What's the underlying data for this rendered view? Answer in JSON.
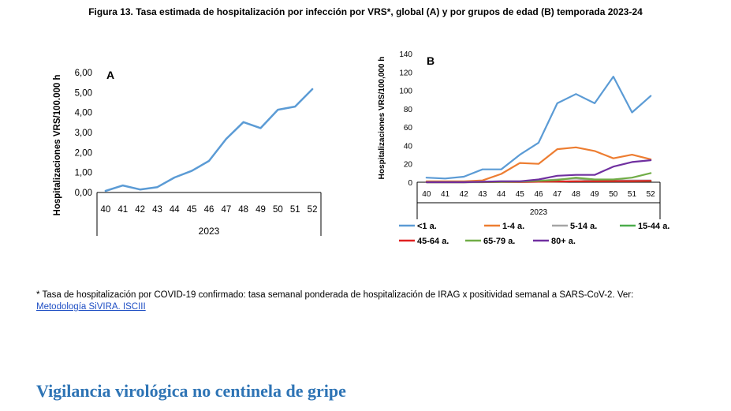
{
  "figure": {
    "title": "Figura 13. Tasa estimada de hospitalización por infección por VRS*, global (A) y por grupos de edad (B) temporada 2023-24"
  },
  "footnote": {
    "text": "* Tasa de hospitalización por COVID-19 confirmado: tasa semanal ponderada de hospitalización de IRAG x positividad semanal a SARS-CoV-2. Ver:",
    "link_text": "Metodología SiVIRA. ISCIII"
  },
  "section": {
    "heading": "Vigilancia virológica no centinela de gripe"
  },
  "chart_data": [
    {
      "type": "line",
      "panel_label": "A",
      "categories": [
        "40",
        "41",
        "42",
        "43",
        "44",
        "45",
        "46",
        "47",
        "48",
        "49",
        "50",
        "51",
        "52"
      ],
      "category_group": "2023",
      "ylabel": "Hospitalizaciones VRS/100.000 h",
      "ylim": [
        0,
        6
      ],
      "yticks": [
        "0,00",
        "1,00",
        "2,00",
        "3,00",
        "4,00",
        "5,00",
        "6,00"
      ],
      "grid": false,
      "series": [
        {
          "color": "#5b9bd5",
          "values": [
            0.08,
            0.35,
            0.15,
            0.27,
            0.75,
            1.08,
            1.58,
            2.68,
            3.52,
            3.22,
            4.14,
            4.3,
            5.17
          ]
        }
      ]
    },
    {
      "type": "line",
      "panel_label": "B",
      "categories": [
        "40",
        "41",
        "42",
        "43",
        "44",
        "45",
        "46",
        "47",
        "48",
        "49",
        "50",
        "51",
        "52"
      ],
      "category_group": "2023",
      "ylabel": "Hospitalizaciones VRS/100,000 h",
      "ylim": [
        0,
        140
      ],
      "yticks": [
        "0",
        "20",
        "40",
        "60",
        "80",
        "100",
        "120",
        "140"
      ],
      "grid": false,
      "legend_position": "bottom",
      "series": [
        {
          "name": "<1 a.",
          "color": "#5b9bd5",
          "values": [
            5,
            4,
            6,
            14,
            14,
            30,
            43,
            86,
            96,
            86,
            115,
            76,
            94
          ]
        },
        {
          "name": "1-4 a.",
          "color": "#ed7d31",
          "values": [
            1,
            1,
            1,
            2,
            9,
            21,
            20,
            36,
            38,
            34,
            26,
            30,
            25
          ]
        },
        {
          "name": "5-14 a.",
          "color": "#a5a5a5",
          "values": [
            0,
            0,
            0,
            0.5,
            1,
            1,
            1.5,
            3,
            4,
            2,
            2,
            2,
            2
          ]
        },
        {
          "name": "15-44 a.",
          "color": "#4bac4b",
          "values": [
            0,
            0,
            0,
            0,
            0.3,
            0.3,
            0.5,
            0.8,
            1,
            1,
            1,
            1,
            1.2
          ]
        },
        {
          "name": "45-64 a.",
          "color": "#e02020",
          "values": [
            0,
            0,
            0,
            0.2,
            0.3,
            0.3,
            0.5,
            0.8,
            1,
            1,
            1.2,
            1.2,
            1.5
          ]
        },
        {
          "name": "65-79 a.",
          "color": "#70ad47",
          "values": [
            0,
            0,
            0,
            0.3,
            0.5,
            0.8,
            1.5,
            2.5,
            5,
            3,
            3,
            5,
            10
          ]
        },
        {
          "name": "80+ a.",
          "color": "#7030a0",
          "values": [
            0,
            0,
            0,
            0.5,
            1,
            1,
            3,
            7,
            8,
            8,
            17,
            22,
            24
          ]
        }
      ]
    }
  ]
}
